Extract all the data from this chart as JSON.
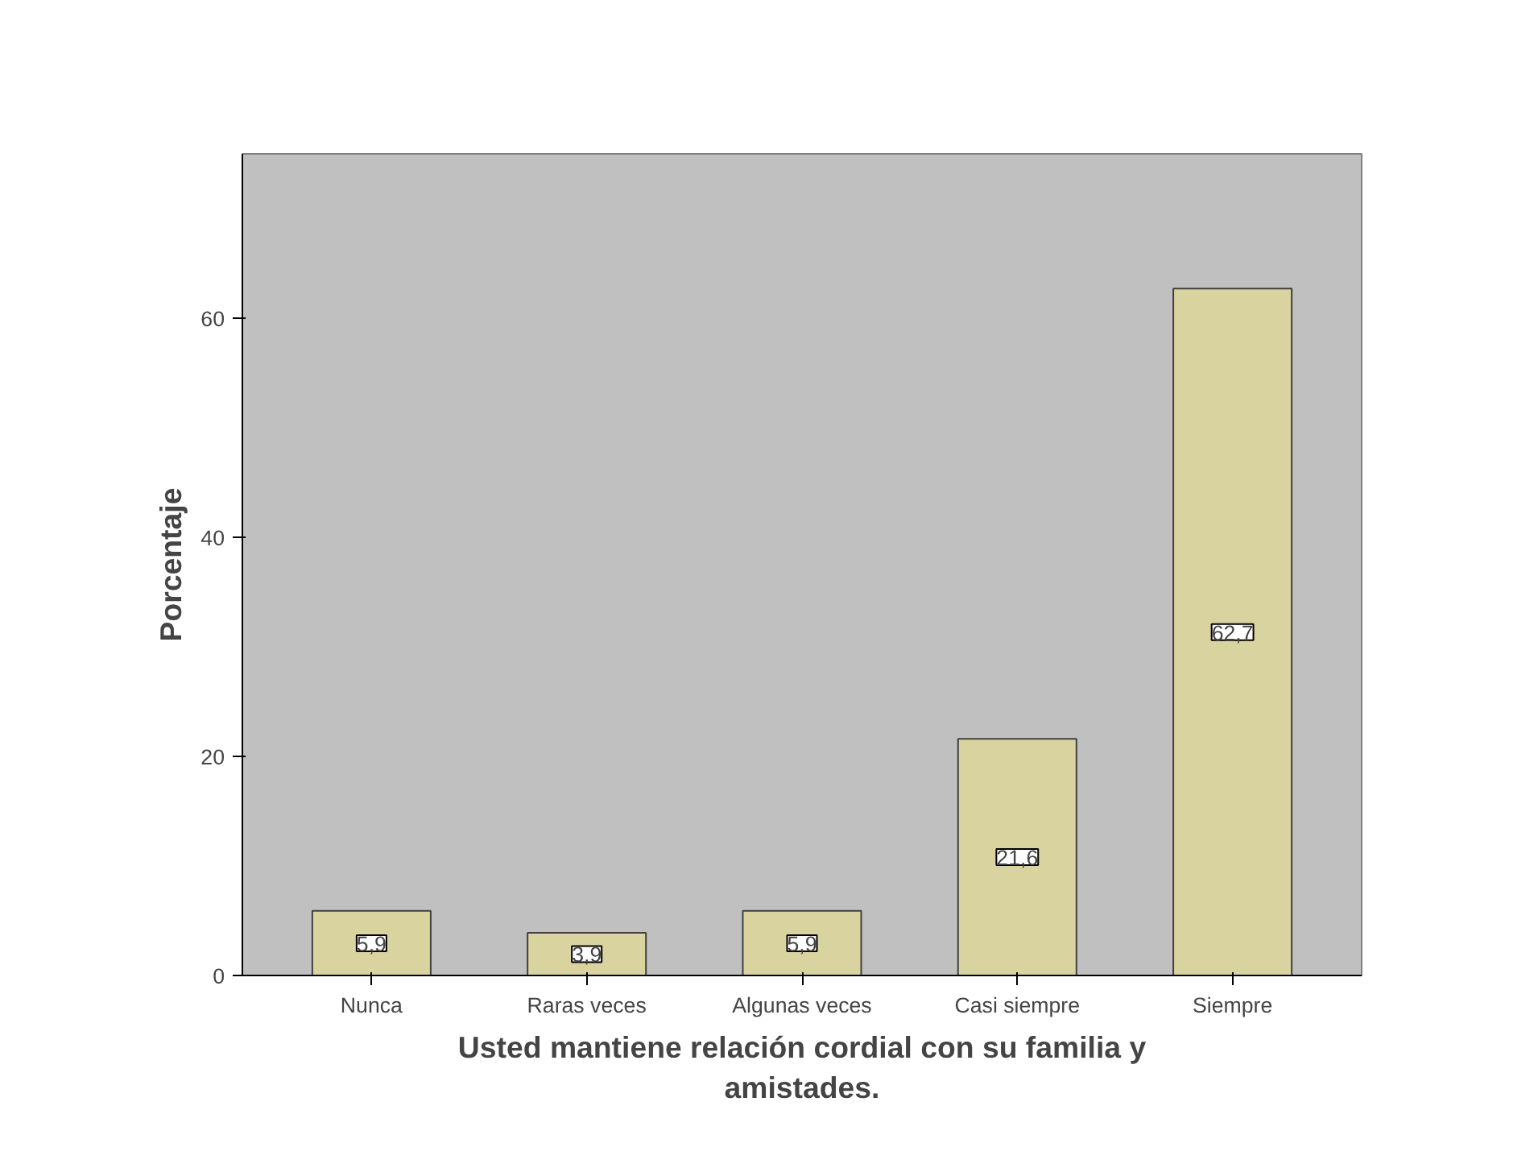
{
  "chart_data": {
    "type": "bar",
    "xlabel": "Usted mantiene relación cordial con su familia y amistades.",
    "ylabel": "Porcentaje",
    "categories": [
      "Nunca",
      "Raras veces",
      "Algunas veces",
      "Casi siempre",
      "Siempre"
    ],
    "values": [
      5.9,
      3.9,
      5.9,
      21.6,
      62.7
    ],
    "value_labels": [
      "5,9",
      "3,9",
      "5,9",
      "21,6",
      "62,7"
    ],
    "color": "#d9d3a0",
    "ylim": [
      0,
      75
    ],
    "yticks": [
      0,
      20,
      40,
      60
    ],
    "grid": false
  }
}
